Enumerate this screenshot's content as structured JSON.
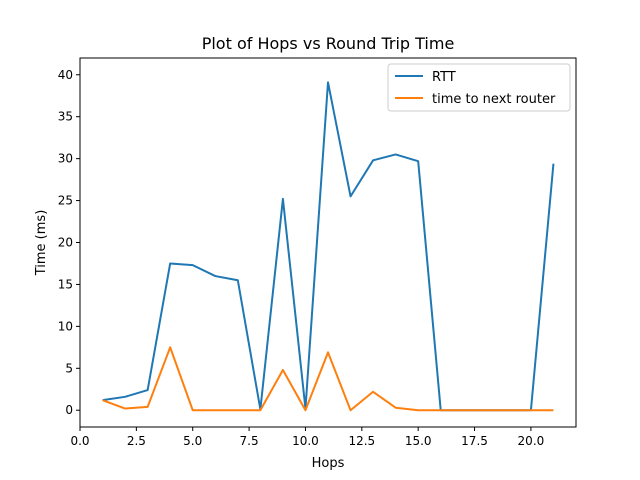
{
  "chart_data": {
    "type": "line",
    "title": "Plot of Hops vs Round Trip Time",
    "xlabel": "Hops",
    "ylabel": "Time (ms)",
    "xlim": [
      0,
      22
    ],
    "ylim": [
      -2,
      42
    ],
    "xticks": [
      0,
      2.5,
      5,
      7.5,
      10,
      12.5,
      15,
      17.5,
      20
    ],
    "xtick_labels": [
      "0.0",
      "2.5",
      "5.0",
      "7.5",
      "10.0",
      "12.5",
      "15.0",
      "17.5",
      "20.0"
    ],
    "yticks": [
      0,
      5,
      10,
      15,
      20,
      25,
      30,
      35,
      40
    ],
    "ytick_labels": [
      "0",
      "5",
      "10",
      "15",
      "20",
      "25",
      "30",
      "35",
      "40"
    ],
    "grid": false,
    "legend_position": "top-right",
    "x": [
      1,
      2,
      3,
      4,
      5,
      6,
      7,
      8,
      9,
      10,
      11,
      12,
      13,
      14,
      15,
      16,
      17,
      18,
      19,
      20,
      21
    ],
    "series": [
      {
        "name": "RTT",
        "color": "#1f77b4",
        "values": [
          1.2,
          1.6,
          2.4,
          17.5,
          17.3,
          16.0,
          15.5,
          0.1,
          25.2,
          0.2,
          39.1,
          25.5,
          29.8,
          30.5,
          29.7,
          0,
          0,
          0,
          0,
          0,
          29.4
        ]
      },
      {
        "name": "time to next router",
        "color": "#ff7f0e",
        "values": [
          1.2,
          0.2,
          0.4,
          7.5,
          0,
          0,
          0,
          0,
          4.8,
          0,
          6.9,
          0,
          2.2,
          0.3,
          0,
          0,
          0,
          0,
          0,
          0,
          0
        ]
      }
    ]
  }
}
